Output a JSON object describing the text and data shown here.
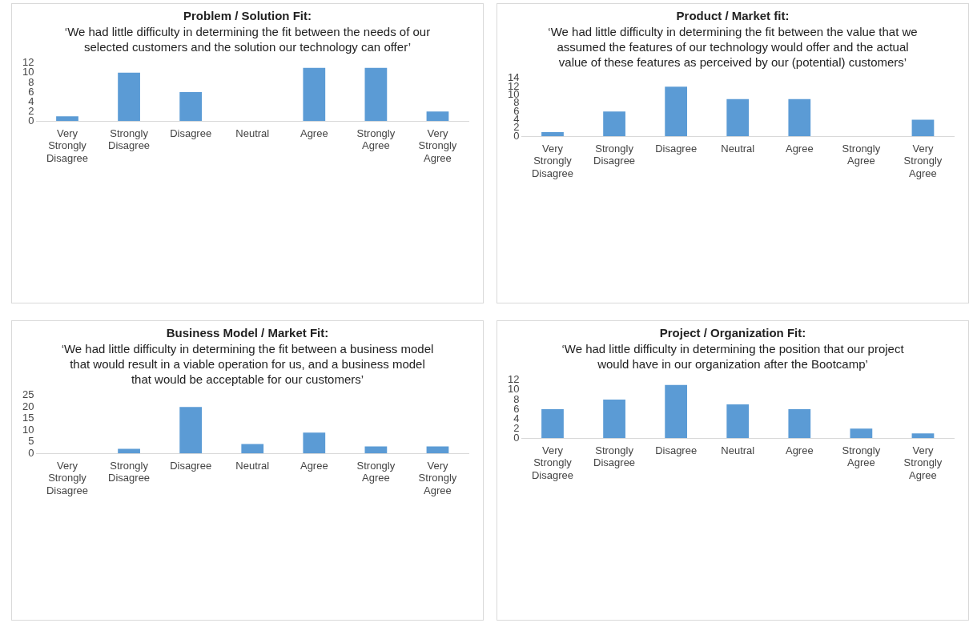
{
  "chart_data": [
    {
      "type": "bar",
      "title": "Problem / Solution Fit:",
      "subtitle": "‘We had little difficulty in determining the fit between the needs of our selected customers and the solution our technology can offer’",
      "categories": [
        "Very Strongly Disagree",
        "Strongly Disagree",
        "Disagree",
        "Neutral",
        "Agree",
        "Strongly Agree",
        "Very Strongly Agree"
      ],
      "values": [
        1,
        10,
        6,
        0,
        11,
        11,
        2
      ],
      "color": "#5b9bd5",
      "ylim": [
        0,
        12
      ],
      "yticks": [
        0,
        2,
        4,
        6,
        8,
        10,
        12
      ],
      "grid": false,
      "legend": false
    },
    {
      "type": "bar",
      "title": "Product / Market fit:",
      "subtitle": "‘We had little difficulty in determining the fit between the value that we assumed the features of our technology would offer and the actual value of these features as perceived by our (potential) customers’",
      "categories": [
        "Very Strongly Disagree",
        "Strongly Disagree",
        "Disagree",
        "Neutral",
        "Agree",
        "Strongly Agree",
        "Very Strongly Agree"
      ],
      "values": [
        1,
        6,
        12,
        9,
        9,
        0,
        4
      ],
      "color": "#5b9bd5",
      "ylim": [
        0,
        14
      ],
      "yticks": [
        0,
        2,
        4,
        6,
        8,
        10,
        12,
        14
      ],
      "grid": false,
      "legend": false
    },
    {
      "type": "bar",
      "title": "Business Model / Market Fit:",
      "subtitle": "‘We had little difficulty in determining the fit between a business model that would result in a viable operation for us, and a business model that would be acceptable for our customers’",
      "categories": [
        "Very Strongly Disagree",
        "Strongly Disagree",
        "Disagree",
        "Neutral",
        "Agree",
        "Strongly Agree",
        "Very Strongly Agree"
      ],
      "values": [
        0,
        2,
        20,
        4,
        9,
        3,
        3
      ],
      "color": "#5b9bd5",
      "ylim": [
        0,
        25
      ],
      "yticks": [
        0,
        5,
        10,
        15,
        20,
        25
      ],
      "grid": false,
      "legend": false
    },
    {
      "type": "bar",
      "title": "Project / Organization Fit:",
      "subtitle": "‘We had little difficulty in determining the position that our project would have in our organization after the Bootcamp’",
      "categories": [
        "Very Strongly Disagree",
        "Strongly Disagree",
        "Disagree",
        "Neutral",
        "Agree",
        "Strongly Agree",
        "Very Strongly Agree"
      ],
      "values": [
        6,
        8,
        11,
        7,
        6,
        2,
        1
      ],
      "color": "#5b9bd5",
      "ylim": [
        0,
        12
      ],
      "yticks": [
        0,
        2,
        4,
        6,
        8,
        10,
        12
      ],
      "grid": false,
      "legend": false
    }
  ]
}
